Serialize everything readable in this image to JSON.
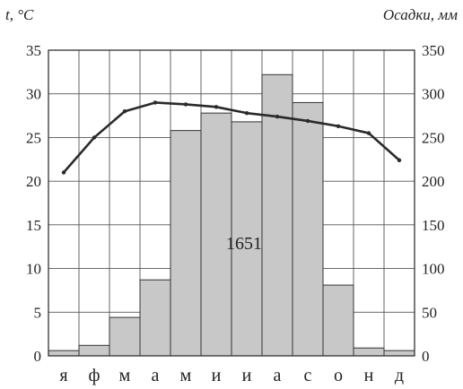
{
  "chart_data": {
    "type": "bar+line",
    "categories": [
      "я",
      "ф",
      "м",
      "а",
      "м",
      "и",
      "и",
      "а",
      "с",
      "о",
      "н",
      "д"
    ],
    "left_axis": {
      "title": "t, °C",
      "range": [
        0,
        35
      ],
      "ticks": [
        "0",
        "5",
        "10",
        "15",
        "20",
        "25",
        "30",
        "35"
      ]
    },
    "right_axis": {
      "title": "Осадки, мм",
      "range": [
        0,
        350
      ],
      "ticks": [
        "0",
        "50",
        "100",
        "150",
        "200",
        "250",
        "300",
        "350"
      ]
    },
    "series": [
      {
        "kind": "bar",
        "axis": "right",
        "values": [
          6,
          12,
          44,
          87,
          258,
          278,
          268,
          322,
          290,
          81,
          9,
          6
        ],
        "color": "#c8c8c8"
      },
      {
        "kind": "line",
        "axis": "left",
        "values": [
          21,
          25,
          28,
          29,
          28.8,
          28.5,
          27.8,
          27.4,
          26.9,
          26.3,
          25.5,
          22.4
        ],
        "color": "#2a2a2a"
      }
    ],
    "annotation": "1651",
    "grid": true
  }
}
